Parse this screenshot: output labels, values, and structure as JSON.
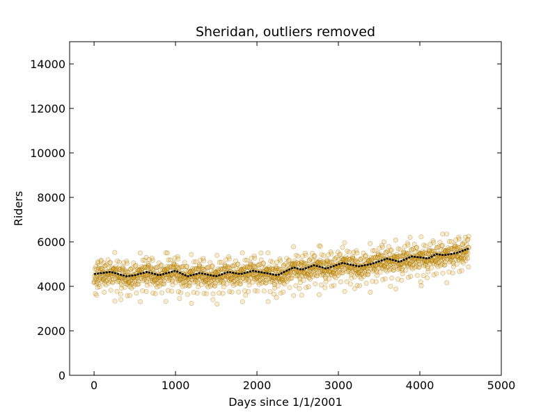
{
  "chart_data": {
    "type": "scatter",
    "title": "Sheridan, outliers removed",
    "xlabel": "Days since 1/1/2001",
    "ylabel": "Riders",
    "xlim": [
      -300,
      5000
    ],
    "ylim": [
      0,
      15000
    ],
    "xticks": [
      0,
      1000,
      2000,
      3000,
      4000,
      5000
    ],
    "yticks": [
      0,
      2000,
      4000,
      6000,
      8000,
      10000,
      12000,
      14000
    ],
    "grid": false,
    "legend": "none",
    "series": [
      {
        "kind": "scatter",
        "color": "#e8a317",
        "x_range": [
          0,
          4600
        ],
        "point_count": 1600,
        "trend_ref": "trend",
        "typical_scatter": 350,
        "sample_points": [
          {
            "x": 30,
            "y": 3600
          },
          {
            "x": 120,
            "y": 5050
          },
          {
            "x": 330,
            "y": 3400
          },
          {
            "x": 640,
            "y": 5300
          },
          {
            "x": 900,
            "y": 5500
          },
          {
            "x": 1050,
            "y": 3450
          },
          {
            "x": 1460,
            "y": 3400
          },
          {
            "x": 1860,
            "y": 3600
          },
          {
            "x": 2050,
            "y": 5500
          },
          {
            "x": 2240,
            "y": 3500
          },
          {
            "x": 2550,
            "y": 3600
          },
          {
            "x": 2780,
            "y": 5800
          },
          {
            "x": 3050,
            "y": 5750
          },
          {
            "x": 3200,
            "y": 3900
          },
          {
            "x": 3560,
            "y": 6000
          },
          {
            "x": 3640,
            "y": 4000
          },
          {
            "x": 3880,
            "y": 6200
          },
          {
            "x": 4010,
            "y": 4200
          },
          {
            "x": 4280,
            "y": 6350
          },
          {
            "x": 4600,
            "y": 6250
          }
        ]
      },
      {
        "kind": "line",
        "id": "trend",
        "color": "#000000",
        "x": [
          0,
          200,
          400,
          500,
          650,
          800,
          1000,
          1150,
          1300,
          1500,
          1650,
          1800,
          1950,
          2100,
          2250,
          2450,
          2550,
          2700,
          2850,
          3050,
          3250,
          3400,
          3600,
          3750,
          3900,
          4100,
          4200,
          4300,
          4450,
          4600
        ],
        "y": [
          4550,
          4650,
          4450,
          4500,
          4650,
          4500,
          4700,
          4450,
          4600,
          4450,
          4650,
          4550,
          4700,
          4600,
          4500,
          4850,
          4750,
          4950,
          4800,
          5050,
          4900,
          5000,
          5250,
          5100,
          5350,
          5250,
          5450,
          5400,
          5500,
          5700
        ]
      }
    ]
  }
}
